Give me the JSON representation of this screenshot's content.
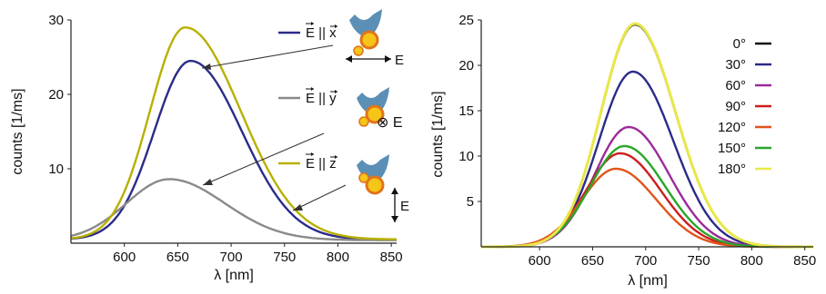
{
  "chart_data": [
    {
      "type": "line",
      "xlabel": "λ [nm]",
      "ylabel": "counts [1/ms]",
      "xlim": [
        550,
        855
      ],
      "ylim": [
        0,
        30
      ],
      "xticks": [
        600,
        650,
        700,
        750,
        800,
        850
      ],
      "yticks": [
        10,
        20,
        30
      ],
      "grid": false,
      "series": [
        {
          "name": "E⃗ || x⃗",
          "color": "#2b2b8a",
          "peak_x": 662,
          "peak_y": 24.5,
          "base": 0.5,
          "sig_l": 34,
          "sig_r": 48,
          "legend": {
            "prefix": "E",
            "sub": "x"
          }
        },
        {
          "name": "E⃗ || y⃗",
          "color": "#8a8a8a",
          "peak_x": 642,
          "peak_y": 8.6,
          "base": 0.4,
          "sig_l": 40,
          "sig_r": 52,
          "legend": {
            "prefix": "E",
            "sub": "y"
          }
        },
        {
          "name": "E⃗ || z⃗",
          "color": "#b8b000",
          "peak_x": 657,
          "peak_y": 29.0,
          "base": 0.5,
          "sig_l": 33,
          "sig_r": 52,
          "legend": {
            "prefix": "E",
            "sub": "z"
          }
        }
      ],
      "annotations": {
        "e_arrow_x": "E",
        "e_arrow_y": "⊗ E",
        "e_arrow_z": "E"
      }
    },
    {
      "type": "line",
      "xlabel": "λ [nm]",
      "ylabel": "counts [1/ms]",
      "xlim": [
        545,
        858
      ],
      "ylim": [
        0,
        25
      ],
      "xticks": [
        600,
        650,
        700,
        750,
        800,
        850
      ],
      "yticks": [
        5,
        10,
        15,
        20,
        25
      ],
      "grid": false,
      "legend_position": "top-right",
      "series": [
        {
          "name": "0°",
          "color": "#111111",
          "peak_x": 690,
          "peak_y": 24.5,
          "base": 0.0,
          "sig_l": 32,
          "sig_r": 38
        },
        {
          "name": "30°",
          "color": "#2b2b8a",
          "peak_x": 688,
          "peak_y": 19.3,
          "base": 0.0,
          "sig_l": 32,
          "sig_r": 38
        },
        {
          "name": "60°",
          "color": "#9b2a9b",
          "peak_x": 684,
          "peak_y": 13.2,
          "base": 0.0,
          "sig_l": 32,
          "sig_r": 38
        },
        {
          "name": "90°",
          "color": "#cc1e1e",
          "peak_x": 676,
          "peak_y": 10.3,
          "base": 0.0,
          "sig_l": 32,
          "sig_r": 38
        },
        {
          "name": "120°",
          "color": "#e0541a",
          "peak_x": 672,
          "peak_y": 8.6,
          "base": 0.0,
          "sig_l": 32,
          "sig_r": 38
        },
        {
          "name": "150°",
          "color": "#2aa62a",
          "peak_x": 680,
          "peak_y": 11.1,
          "base": 0.0,
          "sig_l": 32,
          "sig_r": 38
        },
        {
          "name": "180°",
          "color": "#e8e84a",
          "peak_x": 690,
          "peak_y": 24.6,
          "base": 0.0,
          "sig_l": 32,
          "sig_r": 38
        }
      ]
    }
  ]
}
